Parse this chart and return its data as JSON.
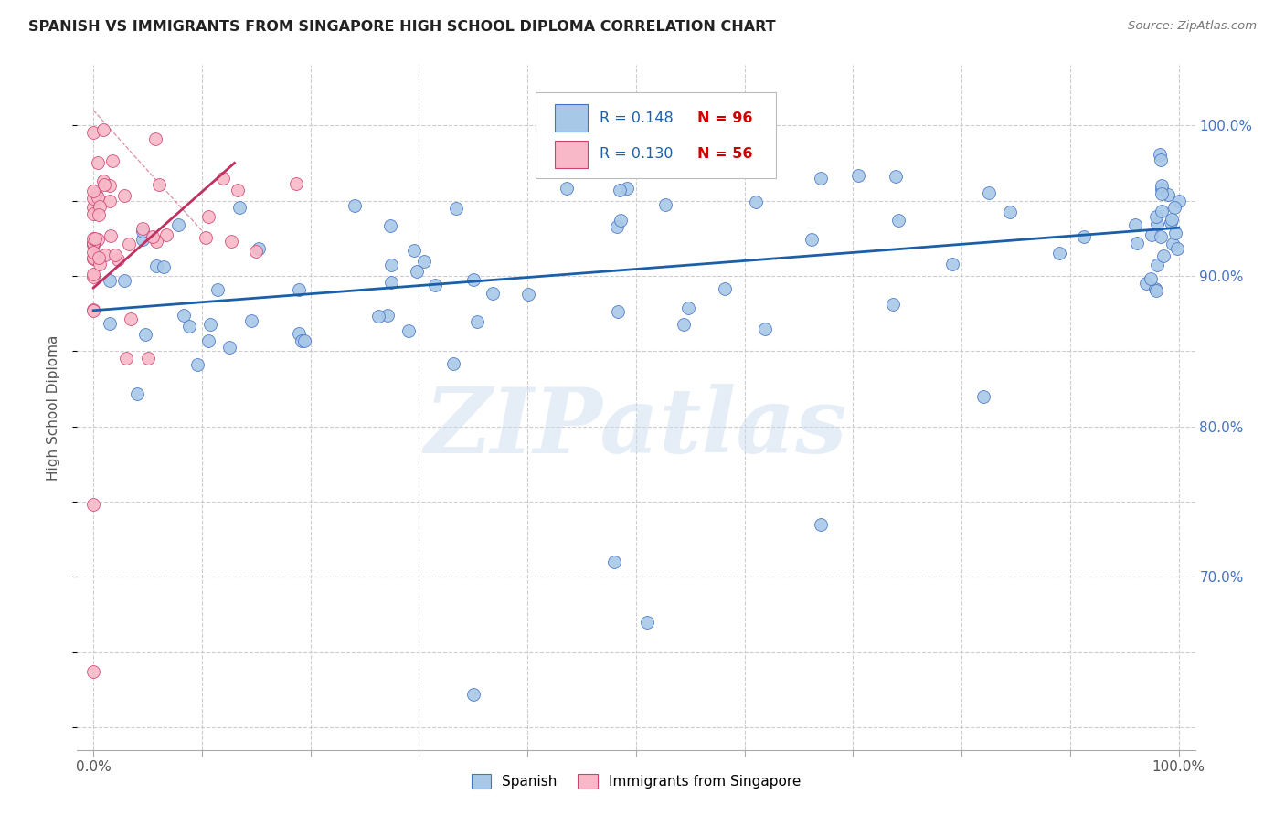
{
  "title": "SPANISH VS IMMIGRANTS FROM SINGAPORE HIGH SCHOOL DIPLOMA CORRELATION CHART",
  "source": "Source: ZipAtlas.com",
  "ylabel": "High School Diploma",
  "watermark": "ZIPatlas",
  "legend_r1": "R = 0.148",
  "legend_n1": "N = 96",
  "legend_r2": "R = 0.130",
  "legend_n2": "N = 56",
  "blue_face_color": "#a8c8e8",
  "blue_edge_color": "#4472c4",
  "pink_face_color": "#f8b8c8",
  "pink_edge_color": "#d04070",
  "blue_line_color": "#1a5fa8",
  "pink_line_color": "#c03060",
  "right_tick_color": "#4472c4",
  "background_color": "#ffffff",
  "grid_color": "#c8c8c8",
  "xtick_vals": [
    0.0,
    0.1,
    0.2,
    0.3,
    0.4,
    0.5,
    0.6,
    0.7,
    0.8,
    0.9,
    1.0
  ],
  "xtick_labels": [
    "0.0%",
    "",
    "",
    "",
    "",
    "",
    "",
    "",
    "",
    "",
    "100.0%"
  ],
  "ytick_vals": [
    0.6,
    0.65,
    0.7,
    0.75,
    0.8,
    0.85,
    0.9,
    0.95,
    1.0
  ],
  "ytick_labels_right": [
    "",
    "",
    "70.0%",
    "",
    "80.0%",
    "",
    "90.0%",
    "",
    "100.0%"
  ],
  "blue_trend_x0": 0.0,
  "blue_trend_y0": 0.877,
  "blue_trend_x1": 1.0,
  "blue_trend_y1": 0.932,
  "pink_trend_x0": 0.0,
  "pink_trend_y0": 0.892,
  "pink_trend_x1": 0.13,
  "pink_trend_y1": 0.975
}
